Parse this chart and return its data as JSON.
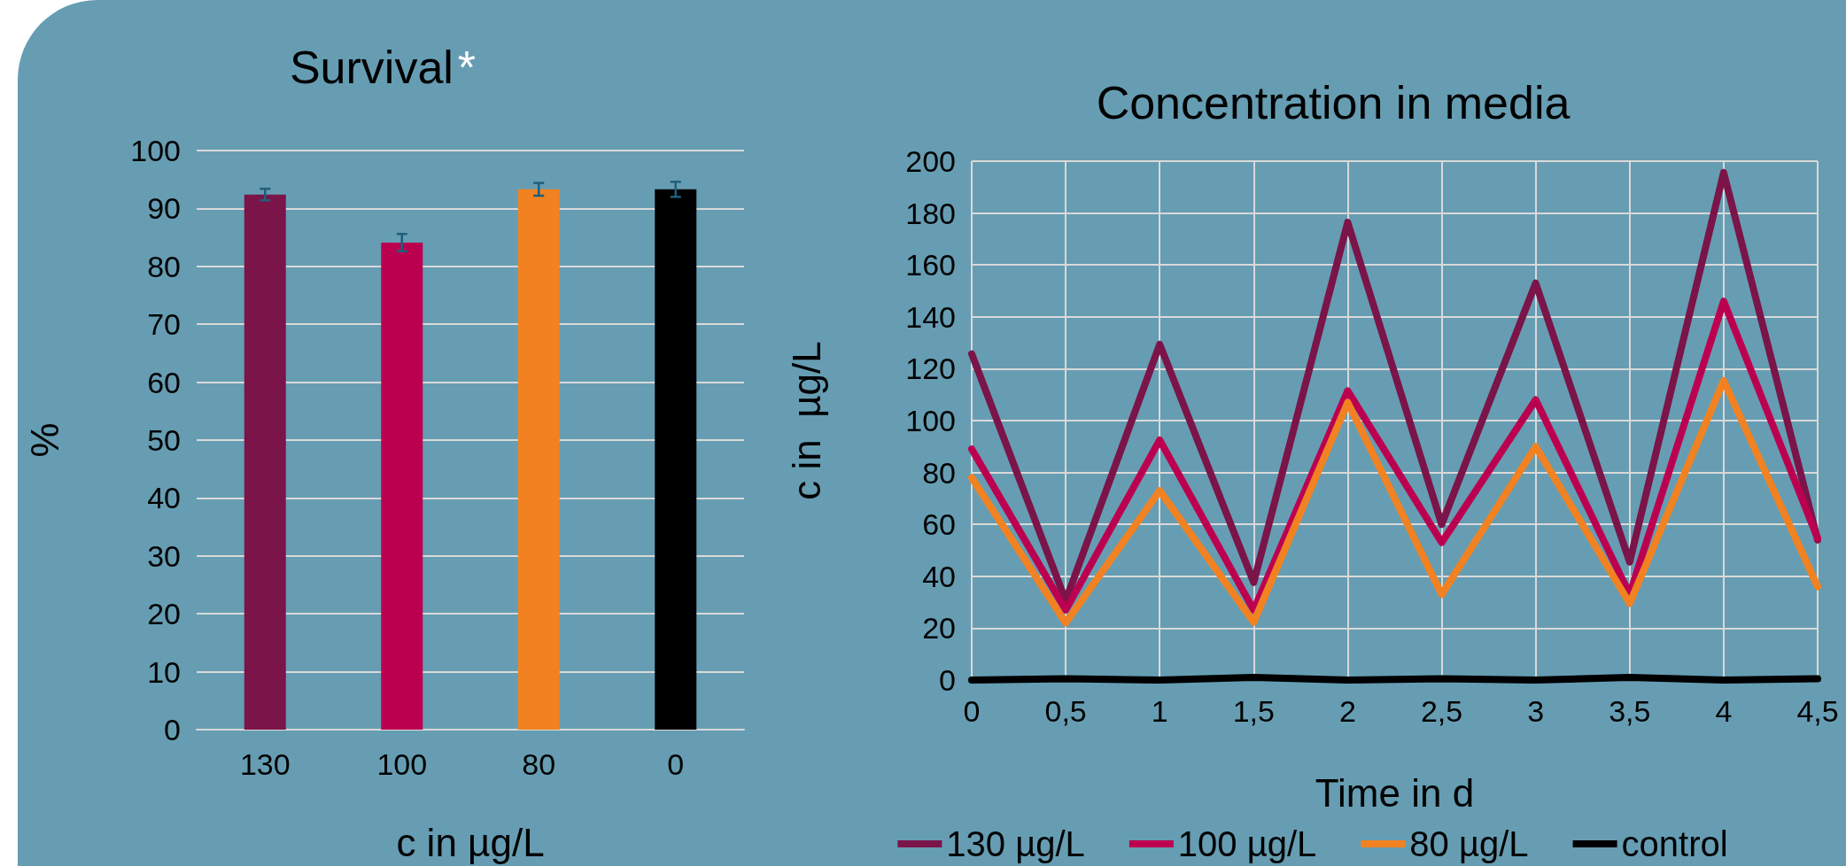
{
  "chart_data": [
    {
      "type": "bar",
      "title": "Survival",
      "annotations": [
        "*"
      ],
      "xlabel": "c in µg/L",
      "ylabel": "%",
      "categories": [
        "130",
        "100",
        "80",
        "0"
      ],
      "values": [
        92.4,
        84.1,
        93.3,
        93.3
      ],
      "errors": [
        1.0,
        1.5,
        1.1,
        1.3
      ],
      "colors": [
        "#7b1449",
        "#bc0050",
        "#f28221",
        "#000000"
      ],
      "ylim": [
        0,
        100
      ],
      "yticks": [
        0,
        10,
        20,
        30,
        40,
        50,
        60,
        70,
        80,
        90,
        100
      ],
      "grid": "y"
    },
    {
      "type": "line",
      "title": "Concentration in media",
      "xlabel": "Time in d",
      "ylabel": "c in  µg/L",
      "x": [
        0,
        0.5,
        1,
        1.5,
        2,
        2.5,
        3,
        3.5,
        4,
        4.5
      ],
      "series": [
        {
          "name": "130 µg/L",
          "color": "#7b1449",
          "values": [
            125.7,
            30.6,
            129.4,
            37.6,
            176.4,
            60,
            153,
            45.5,
            195.6,
            54
          ]
        },
        {
          "name": "100 µg/L",
          "color": "#bc0050",
          "values": [
            89,
            27,
            92.5,
            27,
            111.5,
            53,
            108,
            33,
            146,
            54.6
          ]
        },
        {
          "name": "80 µg/L",
          "color": "#f28221",
          "values": [
            78,
            22,
            73,
            22.3,
            107,
            33,
            90,
            29.5,
            115.4,
            36
          ]
        },
        {
          "name": "control",
          "color": "#000000",
          "values": [
            0,
            0.5,
            0,
            1,
            0,
            0.5,
            0,
            1,
            0,
            0.5
          ]
        }
      ],
      "xlim": [
        0,
        4.5
      ],
      "xticks": [
        0,
        {
          "value": 0.5,
          "label": "0,5"
        },
        1,
        {
          "value": 1.5,
          "label": "1,5"
        },
        2,
        {
          "value": 2.5,
          "label": "2,5"
        },
        3,
        {
          "value": 3.5,
          "label": "3,5"
        },
        4,
        {
          "value": 4.5,
          "label": "4,5"
        }
      ],
      "ylim": [
        0,
        200
      ],
      "yticks": [
        0,
        20,
        40,
        60,
        80,
        100,
        120,
        140,
        160,
        180,
        200
      ],
      "grid": true,
      "legend": "bottom",
      "marker": "none",
      "line_style": "solid"
    }
  ]
}
